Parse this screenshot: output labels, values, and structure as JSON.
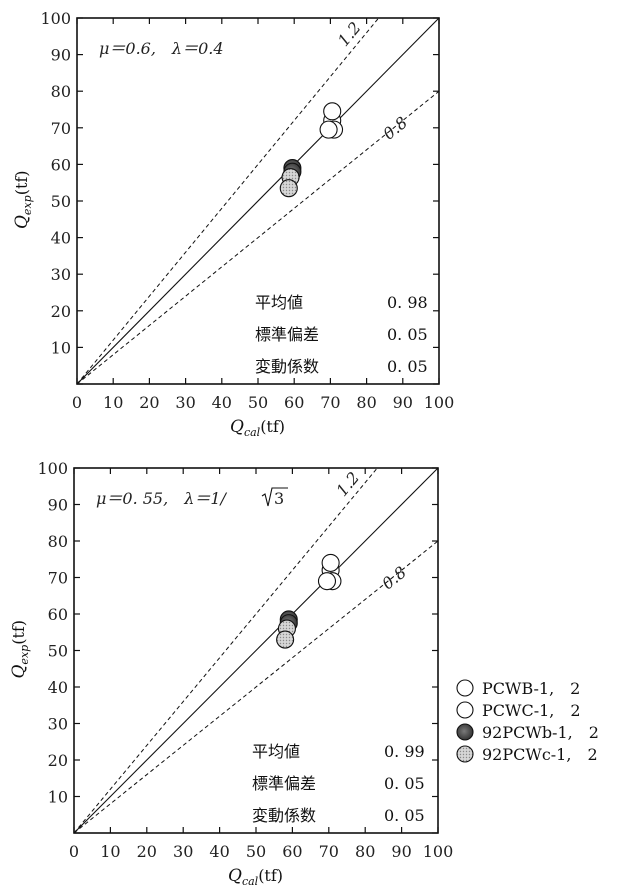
{
  "chart_data": [
    {
      "type": "scatter",
      "annotation": "μ＝0.6,　λ＝0.4",
      "xlabel_main": "Q",
      "xlabel_sub": "cal",
      "xlabel_unit": "(tf)",
      "ylabel_main": "Q",
      "ylabel_sub": "exp",
      "ylabel_unit": "(tf)",
      "xlim": [
        0,
        100
      ],
      "ylim": [
        0,
        100
      ],
      "ticks": [
        0,
        10,
        20,
        30,
        40,
        50,
        60,
        70,
        80,
        90,
        100
      ],
      "reference_lines": [
        {
          "slope": 1.0,
          "style": "solid",
          "label": ""
        },
        {
          "slope": 1.2,
          "style": "dashed",
          "label": "1.2"
        },
        {
          "slope": 0.8,
          "style": "dashed",
          "label": "0.8"
        }
      ],
      "stats": [
        {
          "label": "平均値",
          "value": "0. 98"
        },
        {
          "label": "標準偏差",
          "value": "0. 05"
        },
        {
          "label": "変動係数",
          "value": "0. 05"
        }
      ],
      "series": [
        {
          "legend": 0,
          "points": [
            [
              70.5,
              72
            ],
            [
              71,
              69.5
            ]
          ]
        },
        {
          "legend": 1,
          "points": [
            [
              69.5,
              69.5
            ],
            [
              70.5,
              74.5
            ]
          ]
        },
        {
          "legend": 2,
          "points": [
            [
              59.5,
              59
            ],
            [
              59.5,
              58
            ]
          ]
        },
        {
          "legend": 3,
          "points": [
            [
              59,
              56.5
            ],
            [
              58.5,
              53.5
            ]
          ]
        }
      ]
    },
    {
      "type": "scatter",
      "annotation": "μ＝0. 55,　λ＝1/",
      "annotation_root": "3",
      "xlabel_main": "Q",
      "xlabel_sub": "cal",
      "xlabel_unit": "(tf)",
      "ylabel_main": "Q",
      "ylabel_sub": "exp",
      "ylabel_unit": "(tf)",
      "xlim": [
        0,
        100
      ],
      "ylim": [
        0,
        100
      ],
      "ticks": [
        0,
        10,
        20,
        30,
        40,
        50,
        60,
        70,
        80,
        90,
        100
      ],
      "reference_lines": [
        {
          "slope": 1.0,
          "style": "solid",
          "label": ""
        },
        {
          "slope": 1.2,
          "style": "dashed",
          "label": "1.2"
        },
        {
          "slope": 0.8,
          "style": "dashed",
          "label": "0.8"
        }
      ],
      "stats": [
        {
          "label": "平均値",
          "value": "0. 99"
        },
        {
          "label": "標準偏差",
          "value": "0. 05"
        },
        {
          "label": "変動係数",
          "value": "0. 05"
        }
      ],
      "series": [
        {
          "legend": 0,
          "points": [
            [
              70.5,
              72
            ],
            [
              71,
              69
            ]
          ]
        },
        {
          "legend": 1,
          "points": [
            [
              69.5,
              69
            ],
            [
              70.5,
              74
            ]
          ]
        },
        {
          "legend": 2,
          "points": [
            [
              59,
              58.5
            ],
            [
              59,
              57.5
            ]
          ]
        },
        {
          "legend": 3,
          "points": [
            [
              58.5,
              56
            ],
            [
              58,
              53
            ]
          ]
        }
      ]
    }
  ],
  "legend": [
    {
      "label": "PCWB-1,　2",
      "fill": "#ffffff"
    },
    {
      "label": "PCWC-1,　2",
      "fill": "#ffffff"
    },
    {
      "label": "92PCWb-1,　2",
      "fill": "#555555"
    },
    {
      "label": "92PCWc-1,　2",
      "fill": "#cfcfcf"
    }
  ],
  "colors": {
    "axis": "#111111",
    "marker_edge": "#111111",
    "light_fill": "#cfcfcf",
    "dark_fill": "#555555",
    "white_fill": "#ffffff"
  }
}
